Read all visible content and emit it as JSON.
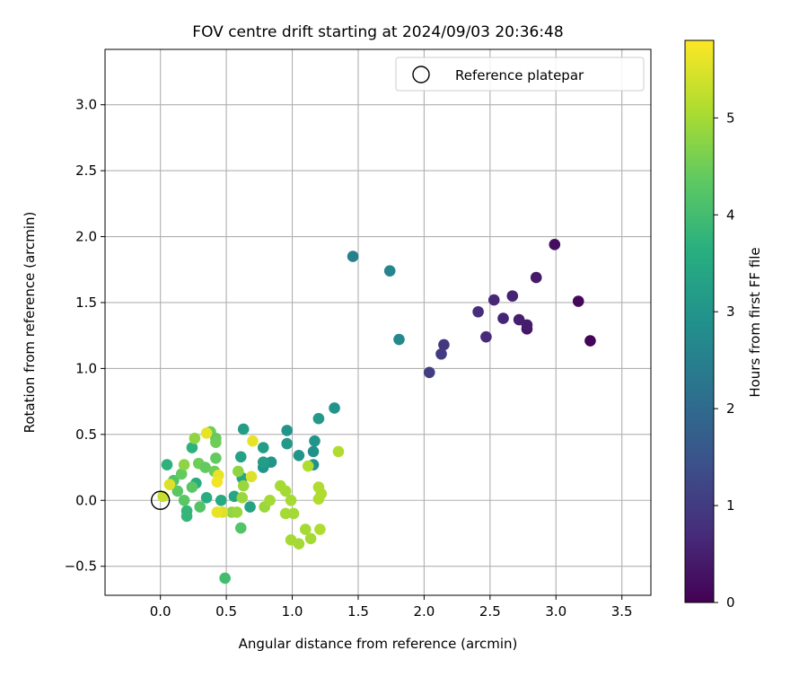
{
  "chart_data": {
    "type": "scatter",
    "title": "FOV centre drift starting at 2024/09/03 20:36:48",
    "xlabel": "Angular distance from reference (arcmin)",
    "ylabel": "Rotation from reference (arcmin)",
    "xlim": [
      -0.42,
      3.72
    ],
    "ylim": [
      -0.72,
      3.42
    ],
    "xticks": [
      "0.0",
      "0.5",
      "1.0",
      "1.5",
      "2.0",
      "2.5",
      "3.0",
      "3.5"
    ],
    "xtick_values": [
      0,
      0.5,
      1.0,
      1.5,
      2.0,
      2.5,
      3.0,
      3.5
    ],
    "yticks": [
      "−0.5",
      "0.0",
      "0.5",
      "1.0",
      "1.5",
      "2.0",
      "2.5",
      "3.0"
    ],
    "ytick_values": [
      -0.5,
      0,
      0.5,
      1.0,
      1.5,
      2.0,
      2.5,
      3.0
    ],
    "grid": true,
    "legend": {
      "position": "upper-right",
      "entries": [
        "Reference platepar"
      ]
    },
    "reference_point": {
      "x": 0.0,
      "y": 0.0
    },
    "colorbar": {
      "label": "Hours from first FF file",
      "range": [
        0,
        5.8
      ],
      "ticks": [
        "0",
        "1",
        "2",
        "3",
        "4",
        "5"
      ],
      "tick_values": [
        0,
        1,
        2,
        3,
        4,
        5
      ],
      "colormap": "viridis"
    },
    "points": [
      {
        "x": 3.26,
        "y": 1.21,
        "t": 0.05
      },
      {
        "x": 3.17,
        "y": 1.51,
        "t": 0.1
      },
      {
        "x": 2.99,
        "y": 1.94,
        "t": 0.2
      },
      {
        "x": 2.85,
        "y": 1.69,
        "t": 0.4
      },
      {
        "x": 2.78,
        "y": 1.3,
        "t": 0.35
      },
      {
        "x": 2.78,
        "y": 1.33,
        "t": 0.45
      },
      {
        "x": 2.72,
        "y": 1.37,
        "t": 0.5
      },
      {
        "x": 2.67,
        "y": 1.55,
        "t": 0.55
      },
      {
        "x": 2.6,
        "y": 1.38,
        "t": 0.6
      },
      {
        "x": 2.53,
        "y": 1.52,
        "t": 0.65
      },
      {
        "x": 2.47,
        "y": 1.24,
        "t": 0.7
      },
      {
        "x": 2.41,
        "y": 1.43,
        "t": 0.75
      },
      {
        "x": 2.15,
        "y": 1.18,
        "t": 0.95
      },
      {
        "x": 2.13,
        "y": 1.11,
        "t": 1.0
      },
      {
        "x": 2.04,
        "y": 0.97,
        "t": 1.05
      },
      {
        "x": 1.46,
        "y": 1.85,
        "t": 2.5
      },
      {
        "x": 1.74,
        "y": 1.74,
        "t": 2.6
      },
      {
        "x": 1.81,
        "y": 1.22,
        "t": 2.7
      },
      {
        "x": 1.32,
        "y": 0.7,
        "t": 3.0
      },
      {
        "x": 1.2,
        "y": 0.62,
        "t": 3.1
      },
      {
        "x": 1.17,
        "y": 0.45,
        "t": 3.0
      },
      {
        "x": 1.16,
        "y": 0.37,
        "t": 2.9
      },
      {
        "x": 1.16,
        "y": 0.27,
        "t": 2.9
      },
      {
        "x": 1.05,
        "y": 0.34,
        "t": 3.0
      },
      {
        "x": 0.96,
        "y": 0.53,
        "t": 3.0
      },
      {
        "x": 0.96,
        "y": 0.43,
        "t": 3.1
      },
      {
        "x": 0.84,
        "y": 0.29,
        "t": 3.0
      },
      {
        "x": 0.78,
        "y": 0.25,
        "t": 3.0
      },
      {
        "x": 0.78,
        "y": 0.29,
        "t": 3.2
      },
      {
        "x": 0.78,
        "y": 0.4,
        "t": 3.2
      },
      {
        "x": 0.63,
        "y": 0.54,
        "t": 3.2
      },
      {
        "x": 0.61,
        "y": 0.33,
        "t": 3.3
      },
      {
        "x": 0.68,
        "y": -0.05,
        "t": 3.3
      },
      {
        "x": 0.56,
        "y": 0.03,
        "t": 3.4
      },
      {
        "x": 0.62,
        "y": 0.17,
        "t": 3.4
      },
      {
        "x": 0.46,
        "y": 0.0,
        "t": 3.5
      },
      {
        "x": 0.35,
        "y": 0.02,
        "t": 3.6
      },
      {
        "x": 0.27,
        "y": 0.13,
        "t": 3.6
      },
      {
        "x": 0.24,
        "y": 0.4,
        "t": 3.7
      },
      {
        "x": 0.05,
        "y": 0.27,
        "t": 3.7
      },
      {
        "x": 0.2,
        "y": -0.12,
        "t": 3.8
      },
      {
        "x": 0.2,
        "y": -0.08,
        "t": 3.8
      },
      {
        "x": 0.49,
        "y": -0.59,
        "t": 4.0
      },
      {
        "x": 0.61,
        "y": -0.21,
        "t": 4.2
      },
      {
        "x": 0.3,
        "y": -0.05,
        "t": 4.2
      },
      {
        "x": 0.18,
        "y": 0.0,
        "t": 4.3
      },
      {
        "x": 0.13,
        "y": 0.07,
        "t": 4.3
      },
      {
        "x": 0.1,
        "y": 0.15,
        "t": 4.2
      },
      {
        "x": 0.16,
        "y": 0.2,
        "t": 4.4
      },
      {
        "x": 0.24,
        "y": 0.1,
        "t": 4.3
      },
      {
        "x": 0.29,
        "y": 0.28,
        "t": 4.5
      },
      {
        "x": 0.34,
        "y": 0.25,
        "t": 4.4
      },
      {
        "x": 0.38,
        "y": 0.52,
        "t": 4.5
      },
      {
        "x": 0.42,
        "y": 0.47,
        "t": 4.4
      },
      {
        "x": 0.42,
        "y": 0.44,
        "t": 4.5
      },
      {
        "x": 0.42,
        "y": 0.32,
        "t": 4.4
      },
      {
        "x": 0.41,
        "y": 0.22,
        "t": 4.5
      },
      {
        "x": 0.26,
        "y": 0.47,
        "t": 4.8
      },
      {
        "x": 0.18,
        "y": 0.27,
        "t": 4.8
      },
      {
        "x": 0.54,
        "y": -0.09,
        "t": 4.8
      },
      {
        "x": 0.58,
        "y": -0.09,
        "t": 4.9
      },
      {
        "x": 0.59,
        "y": 0.22,
        "t": 4.8
      },
      {
        "x": 0.62,
        "y": 0.02,
        "t": 4.9
      },
      {
        "x": 0.63,
        "y": 0.11,
        "t": 4.9
      },
      {
        "x": 0.79,
        "y": -0.05,
        "t": 4.9
      },
      {
        "x": 0.83,
        "y": 0.0,
        "t": 5.0
      },
      {
        "x": 0.91,
        "y": 0.11,
        "t": 5.0
      },
      {
        "x": 0.95,
        "y": 0.07,
        "t": 5.0
      },
      {
        "x": 0.95,
        "y": -0.1,
        "t": 5.0
      },
      {
        "x": 0.99,
        "y": 0.0,
        "t": 5.0
      },
      {
        "x": 1.01,
        "y": -0.1,
        "t": 5.0
      },
      {
        "x": 0.99,
        "y": -0.3,
        "t": 5.0
      },
      {
        "x": 1.05,
        "y": -0.33,
        "t": 5.0
      },
      {
        "x": 1.1,
        "y": -0.22,
        "t": 5.0
      },
      {
        "x": 1.12,
        "y": 0.26,
        "t": 5.1
      },
      {
        "x": 1.14,
        "y": -0.29,
        "t": 5.0
      },
      {
        "x": 1.2,
        "y": 0.1,
        "t": 5.1
      },
      {
        "x": 1.2,
        "y": 0.01,
        "t": 5.1
      },
      {
        "x": 1.21,
        "y": -0.22,
        "t": 5.1
      },
      {
        "x": 1.22,
        "y": 0.05,
        "t": 5.1
      },
      {
        "x": 1.35,
        "y": 0.37,
        "t": 5.1
      },
      {
        "x": 0.35,
        "y": 0.51,
        "t": 5.6
      },
      {
        "x": 0.47,
        "y": -0.09,
        "t": 5.5
      },
      {
        "x": 0.43,
        "y": -0.09,
        "t": 5.6
      },
      {
        "x": 0.44,
        "y": 0.19,
        "t": 5.6
      },
      {
        "x": 0.43,
        "y": 0.14,
        "t": 5.7
      },
      {
        "x": 0.69,
        "y": 0.18,
        "t": 5.5
      },
      {
        "x": 0.7,
        "y": 0.45,
        "t": 5.6
      },
      {
        "x": 0.07,
        "y": 0.12,
        "t": 5.5
      },
      {
        "x": 0.02,
        "y": 0.03,
        "t": 5.3
      }
    ]
  }
}
